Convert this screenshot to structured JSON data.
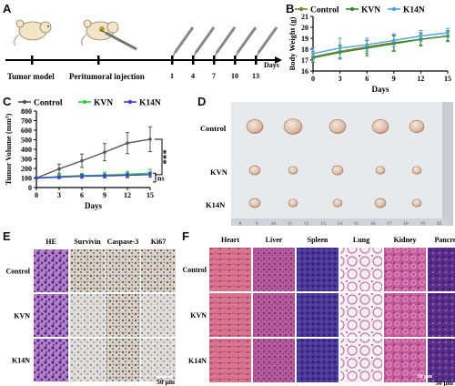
{
  "panel_letters": [
    "A",
    "B",
    "C",
    "D",
    "E",
    "F"
  ],
  "timeline": {
    "tumor_model_label": "Tumor model",
    "injection_label": "Peritumoral injection",
    "days": [
      "1",
      "4",
      "7",
      "10",
      "13"
    ],
    "days_unit": "Days"
  },
  "chart_data": [
    {
      "id": "body-weight",
      "type": "line",
      "title": "",
      "xlabel": "Days",
      "ylabel": "Body Weight (g)",
      "xlim": [
        0,
        15
      ],
      "ylim": [
        16,
        21
      ],
      "x_ticks": [
        0,
        3,
        6,
        9,
        12,
        15
      ],
      "y_ticks": [
        16,
        17,
        18,
        19,
        20,
        21
      ],
      "legend_position": "top",
      "series": [
        {
          "name": "Control",
          "color": "#8b7a2b",
          "x": [
            0,
            3,
            6,
            9,
            12,
            15
          ],
          "y": [
            17.3,
            17.8,
            18.2,
            18.6,
            18.9,
            19.2
          ],
          "err": [
            0.5,
            0.6,
            0.6,
            0.7,
            0.5,
            0.4
          ]
        },
        {
          "name": "KVN",
          "color": "#2e8b2e",
          "x": [
            0,
            3,
            6,
            9,
            12,
            15
          ],
          "y": [
            17.2,
            17.7,
            18.1,
            18.5,
            18.9,
            19.2
          ],
          "err": [
            0.4,
            0.6,
            0.7,
            0.7,
            0.6,
            0.5
          ]
        },
        {
          "name": "K14N",
          "color": "#4aa3df",
          "x": [
            0,
            3,
            6,
            9,
            12,
            15
          ],
          "y": [
            17.6,
            18.1,
            18.4,
            18.8,
            19.2,
            19.5
          ],
          "err": [
            0.5,
            0.9,
            0.6,
            0.6,
            0.5,
            0.4
          ]
        }
      ]
    },
    {
      "id": "tumor-volume",
      "type": "line",
      "title": "",
      "xlabel": "Days",
      "ylabel": "Tumor Volume (mm³)",
      "xlim": [
        0,
        15
      ],
      "ylim": [
        0,
        800
      ],
      "x_ticks": [
        0,
        3,
        6,
        9,
        12,
        15
      ],
      "y_ticks": [
        0,
        100,
        200,
        300,
        400,
        500,
        600,
        700,
        800
      ],
      "legend_position": "top",
      "series": [
        {
          "name": "Control",
          "color": "#555555",
          "x": [
            0,
            3,
            6,
            9,
            12,
            15
          ],
          "y": [
            100,
            195,
            280,
            370,
            465,
            505
          ],
          "err": [
            10,
            50,
            70,
            90,
            110,
            130
          ]
        },
        {
          "name": "KVN",
          "color": "#2ecc40",
          "x": [
            0,
            3,
            6,
            9,
            12,
            15
          ],
          "y": [
            100,
            115,
            125,
            130,
            140,
            150
          ],
          "err": [
            10,
            20,
            25,
            30,
            30,
            40
          ]
        },
        {
          "name": "K14N",
          "color": "#4040cc",
          "x": [
            0,
            3,
            6,
            9,
            12,
            15
          ],
          "y": [
            100,
            108,
            118,
            122,
            128,
            135
          ],
          "err": [
            8,
            15,
            20,
            20,
            25,
            25
          ]
        }
      ],
      "annotations": [
        "***",
        "ns"
      ]
    }
  ],
  "tumor_photo": {
    "rows": [
      "Control",
      "KVN",
      "K14N"
    ],
    "ruler_numbers": [
      "8",
      "9",
      "10",
      "11",
      "12",
      "13",
      "14",
      "15",
      "16",
      "17",
      "18",
      "19",
      "20"
    ]
  },
  "histology_e": {
    "columns": [
      "HE",
      "Survivin",
      "Caspase-3",
      "Ki67"
    ],
    "rows": [
      "Control",
      "KVN",
      "K14N"
    ],
    "scale_bar": "50 μm"
  },
  "histology_f": {
    "columns": [
      "Heart",
      "Liver",
      "Spleen",
      "Lung",
      "Kidney",
      "Pancreas"
    ],
    "rows": [
      "Control",
      "KVN",
      "K14N"
    ],
    "scale_bar": "50 μm",
    "scale_bar_outer": "50 μm"
  }
}
